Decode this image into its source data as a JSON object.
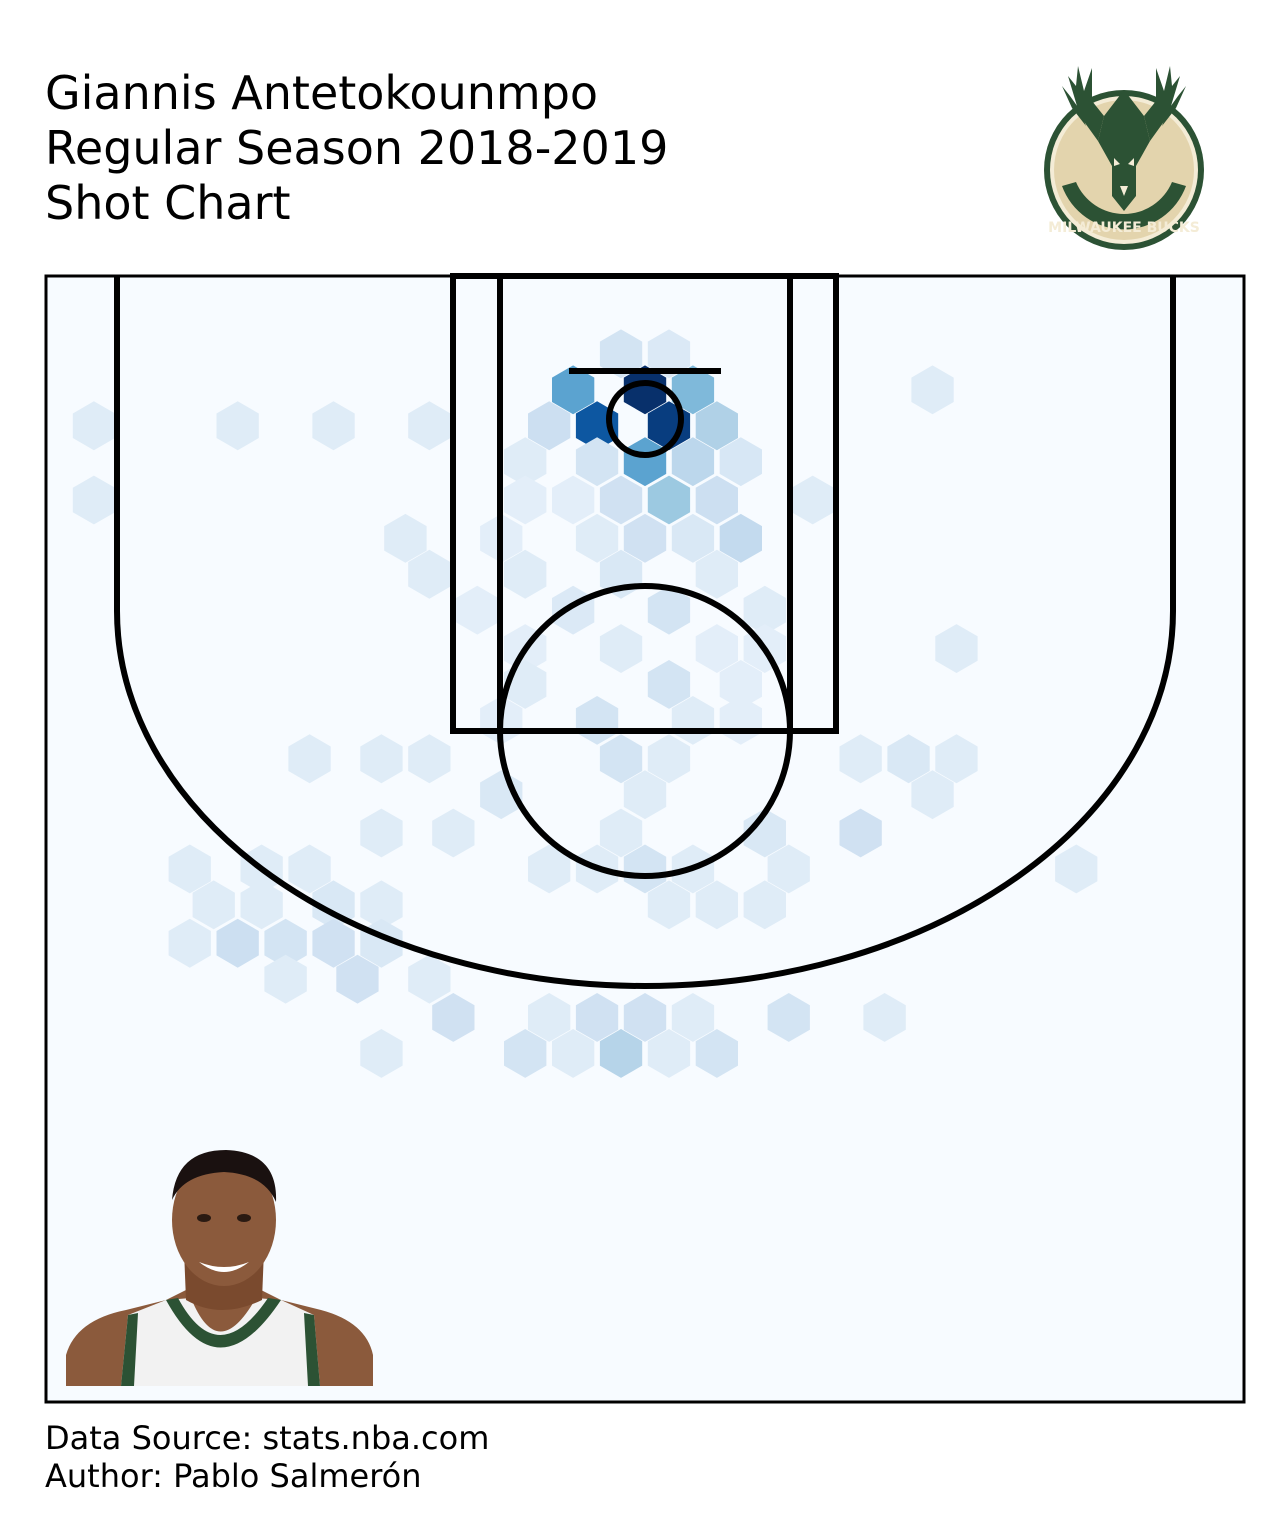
{
  "header": {
    "title_lines": [
      "Giannis Antetokounmpo",
      "Regular Season 2018-2019",
      "Shot Chart"
    ]
  },
  "logo": {
    "icon": "milwaukee-bucks-logo-icon",
    "text": "MILWAUKEE BUCKS",
    "colors": {
      "green": "#2c5234",
      "cream": "#e3d4ad"
    }
  },
  "player_photo": {
    "icon": "player-headshot-icon"
  },
  "footer": {
    "source": "Data Source: stats.nba.com",
    "author": "Author: Pablo Salmerón"
  },
  "chart_data": {
    "type": "heatmap",
    "subtype": "hexbin",
    "colormap": "Blues",
    "colors": {
      "background": "#f7fbff",
      "max": "#08306b",
      "lines": "#000000"
    },
    "xlim": [
      -250,
      250
    ],
    "ylim": [
      -47.5,
      422.5
    ],
    "y_inverted": true,
    "grid": false,
    "unit": "tenths of feet (basket at 0,0)",
    "max_intensity": 100,
    "cells": [
      {
        "x": 0,
        "y": 0,
        "v": 100
      },
      {
        "x": -20,
        "y": 15,
        "v": 85
      },
      {
        "x": 10,
        "y": 15,
        "v": 95
      },
      {
        "x": -30,
        "y": 0,
        "v": 55
      },
      {
        "x": 20,
        "y": 0,
        "v": 45
      },
      {
        "x": -10,
        "y": -15,
        "v": 18
      },
      {
        "x": 10,
        "y": -15,
        "v": 14
      },
      {
        "x": 30,
        "y": 15,
        "v": 32
      },
      {
        "x": -40,
        "y": 15,
        "v": 22
      },
      {
        "x": 0,
        "y": 30,
        "v": 55
      },
      {
        "x": 20,
        "y": 30,
        "v": 28
      },
      {
        "x": -20,
        "y": 30,
        "v": 18
      },
      {
        "x": 40,
        "y": 30,
        "v": 16
      },
      {
        "x": 10,
        "y": 46,
        "v": 38
      },
      {
        "x": -10,
        "y": 46,
        "v": 20
      },
      {
        "x": 30,
        "y": 46,
        "v": 22
      },
      {
        "x": -50,
        "y": 30,
        "v": 12
      },
      {
        "x": -50,
        "y": 46,
        "v": 10
      },
      {
        "x": 40,
        "y": 62,
        "v": 26
      },
      {
        "x": 0,
        "y": 62,
        "v": 20
      },
      {
        "x": 20,
        "y": 62,
        "v": 15
      },
      {
        "x": -20,
        "y": 62,
        "v": 12
      },
      {
        "x": 70,
        "y": 46,
        "v": 12
      },
      {
        "x": -100,
        "y": 62,
        "v": 12
      },
      {
        "x": -90,
        "y": 77,
        "v": 12
      },
      {
        "x": -50,
        "y": 77,
        "v": 12
      },
      {
        "x": -10,
        "y": 77,
        "v": 15
      },
      {
        "x": 30,
        "y": 77,
        "v": 12
      },
      {
        "x": -30,
        "y": 92,
        "v": 14
      },
      {
        "x": 10,
        "y": 92,
        "v": 18
      },
      {
        "x": 50,
        "y": 92,
        "v": 12
      },
      {
        "x": -10,
        "y": 108,
        "v": 12
      },
      {
        "x": 30,
        "y": 108,
        "v": 10
      },
      {
        "x": -50,
        "y": 108,
        "v": 10
      },
      {
        "x": 10,
        "y": 123,
        "v": 18
      },
      {
        "x": -50,
        "y": 123,
        "v": 12
      },
      {
        "x": 40,
        "y": 123,
        "v": 10
      },
      {
        "x": 130,
        "y": 108,
        "v": 12
      },
      {
        "x": -20,
        "y": 138,
        "v": 18
      },
      {
        "x": 20,
        "y": 138,
        "v": 12
      },
      {
        "x": -60,
        "y": 138,
        "v": 10
      },
      {
        "x": 40,
        "y": 138,
        "v": 10
      },
      {
        "x": -140,
        "y": 154,
        "v": 12
      },
      {
        "x": -110,
        "y": 154,
        "v": 12
      },
      {
        "x": -90,
        "y": 154,
        "v": 12
      },
      {
        "x": -10,
        "y": 154,
        "v": 18
      },
      {
        "x": 10,
        "y": 154,
        "v": 12
      },
      {
        "x": 90,
        "y": 154,
        "v": 12
      },
      {
        "x": 110,
        "y": 154,
        "v": 15
      },
      {
        "x": 130,
        "y": 154,
        "v": 12
      },
      {
        "x": -60,
        "y": 169,
        "v": 15
      },
      {
        "x": 0,
        "y": 169,
        "v": 12
      },
      {
        "x": 120,
        "y": 169,
        "v": 12
      },
      {
        "x": -110,
        "y": 185,
        "v": 12
      },
      {
        "x": -80,
        "y": 185,
        "v": 12
      },
      {
        "x": -10,
        "y": 185,
        "v": 12
      },
      {
        "x": 50,
        "y": 185,
        "v": 15
      },
      {
        "x": 90,
        "y": 185,
        "v": 20
      },
      {
        "x": -40,
        "y": 200,
        "v": 12
      },
      {
        "x": 0,
        "y": 200,
        "v": 18
      },
      {
        "x": -20,
        "y": 200,
        "v": 12
      },
      {
        "x": 20,
        "y": 200,
        "v": 12
      },
      {
        "x": 60,
        "y": 200,
        "v": 12
      },
      {
        "x": 180,
        "y": 200,
        "v": 12
      },
      {
        "x": -190,
        "y": 200,
        "v": 12
      },
      {
        "x": -160,
        "y": 200,
        "v": 12
      },
      {
        "x": -140,
        "y": 200,
        "v": 12
      },
      {
        "x": -180,
        "y": 215,
        "v": 12
      },
      {
        "x": -160,
        "y": 215,
        "v": 12
      },
      {
        "x": -130,
        "y": 215,
        "v": 15
      },
      {
        "x": -110,
        "y": 215,
        "v": 12
      },
      {
        "x": 10,
        "y": 215,
        "v": 12
      },
      {
        "x": 30,
        "y": 215,
        "v": 12
      },
      {
        "x": 50,
        "y": 215,
        "v": 12
      },
      {
        "x": -190,
        "y": 231,
        "v": 12
      },
      {
        "x": -170,
        "y": 231,
        "v": 22
      },
      {
        "x": -150,
        "y": 231,
        "v": 18
      },
      {
        "x": -130,
        "y": 231,
        "v": 20
      },
      {
        "x": -110,
        "y": 231,
        "v": 15
      },
      {
        "x": -150,
        "y": 246,
        "v": 12
      },
      {
        "x": -120,
        "y": 246,
        "v": 20
      },
      {
        "x": -90,
        "y": 246,
        "v": 12
      },
      {
        "x": -80,
        "y": 262,
        "v": 20
      },
      {
        "x": -40,
        "y": 262,
        "v": 12
      },
      {
        "x": -20,
        "y": 262,
        "v": 20
      },
      {
        "x": 0,
        "y": 262,
        "v": 20
      },
      {
        "x": 20,
        "y": 262,
        "v": 12
      },
      {
        "x": 60,
        "y": 262,
        "v": 18
      },
      {
        "x": 100,
        "y": 262,
        "v": 12
      },
      {
        "x": -110,
        "y": 277,
        "v": 12
      },
      {
        "x": -50,
        "y": 277,
        "v": 18
      },
      {
        "x": -30,
        "y": 277,
        "v": 12
      },
      {
        "x": -10,
        "y": 277,
        "v": 30
      },
      {
        "x": 10,
        "y": 277,
        "v": 12
      },
      {
        "x": 30,
        "y": 277,
        "v": 18
      },
      {
        "x": -230,
        "y": 15,
        "v": 12
      },
      {
        "x": -170,
        "y": 15,
        "v": 12
      },
      {
        "x": -130,
        "y": 15,
        "v": 12
      },
      {
        "x": -90,
        "y": 15,
        "v": 12
      },
      {
        "x": -230,
        "y": 46,
        "v": 12
      },
      {
        "x": 120,
        "y": 0,
        "v": 12
      },
      {
        "x": -30,
        "y": 46,
        "v": 10
      },
      {
        "x": -60,
        "y": 62,
        "v": 10
      },
      {
        "x": -70,
        "y": 92,
        "v": 10
      },
      {
        "x": 50,
        "y": 108,
        "v": 10
      }
    ]
  }
}
